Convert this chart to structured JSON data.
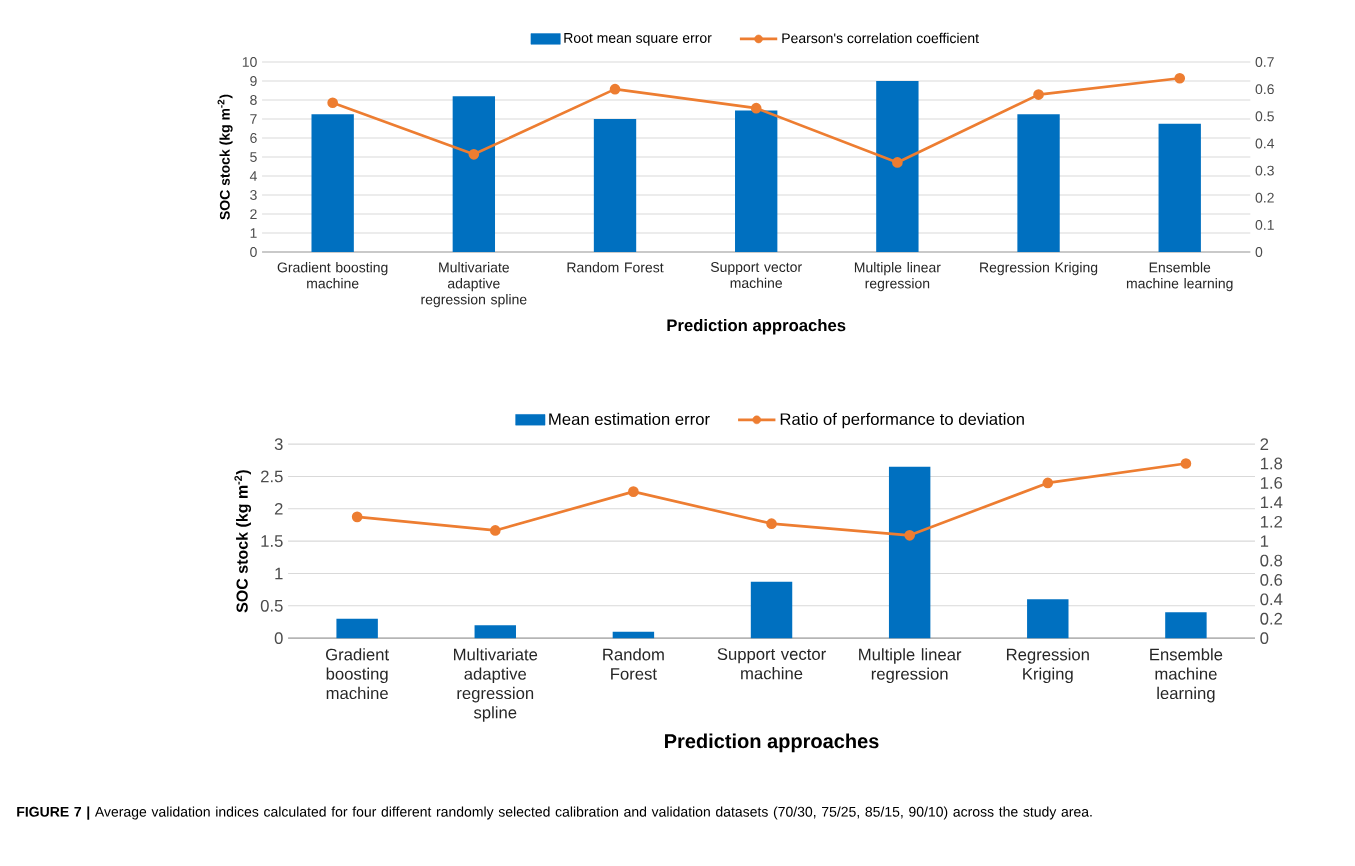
{
  "chart_data": [
    {
      "type": "bar",
      "categories": [
        "Gradient boosting machine",
        "Multivariate adaptive regression spline",
        "Random Forest",
        "Support vector machine",
        "Multiple linear regression",
        "Regression Kriging",
        "Ensemble machine learning"
      ],
      "xlabel": "Prediction approaches",
      "ylabel": "SOC stock (kg m$^{-2}$)",
      "ylim": [
        0,
        10
      ],
      "yticks": [
        0,
        1,
        2,
        3,
        4,
        5,
        6,
        7,
        8,
        9,
        10
      ],
      "y2lim": [
        0,
        0.7
      ],
      "y2ticks": [
        0,
        0.1,
        0.2,
        0.3,
        0.4,
        0.5,
        0.6,
        0.7
      ],
      "grid": "y",
      "legend": "top",
      "marker": "circle",
      "series": [
        {
          "name": "Root mean square error",
          "color": "#0070c0",
          "values": [
            7.25,
            8.2,
            7.0,
            7.45,
            9.0,
            7.25,
            6.75
          ]
        },
        {
          "name": "Pearson's correlation coefficient",
          "type": "line",
          "axis": "y2",
          "color": "#ed7d31",
          "values": [
            0.55,
            0.36,
            0.6,
            0.53,
            0.33,
            0.58,
            0.64
          ]
        }
      ]
    },
    {
      "type": "bar",
      "categories": [
        "Gradient boosting machine",
        "Multivariate adaptive regression spline",
        "Random Forest",
        "Support vector machine",
        "Multiple linear regression",
        "Regression Kriging",
        "Ensemble machine learning"
      ],
      "xlabel": "Prediction approaches",
      "ylabel": "SOC stock (kg m$^{-2}$)",
      "ylim": [
        0,
        3
      ],
      "yticks": [
        0,
        0.5,
        1,
        1.5,
        2,
        2.5,
        3
      ],
      "y2lim": [
        0,
        2
      ],
      "y2ticks": [
        0,
        0.2,
        0.4,
        0.6,
        0.8,
        1,
        1.2,
        1.4,
        1.6,
        1.8,
        2
      ],
      "grid": "y",
      "legend": "top",
      "marker": "circle",
      "annotations": [
        "**FIGURE 7 |** Average validation indices calculated for four different randomly selected calibration and validation datasets (70/30, 75/25, 85/15, 90/10) across the study area."
      ],
      "series": [
        {
          "name": "Mean estimation error",
          "color": "#0070c0",
          "values": [
            0.3,
            0.2,
            0.1,
            0.87,
            2.65,
            0.6,
            0.4
          ]
        },
        {
          "name": "Ratio of performance to deviation",
          "type": "line",
          "axis": "y2",
          "color": "#ed7d31",
          "values": [
            1.25,
            1.11,
            1.51,
            1.18,
            1.06,
            1.6,
            1.8
          ]
        }
      ]
    }
  ]
}
